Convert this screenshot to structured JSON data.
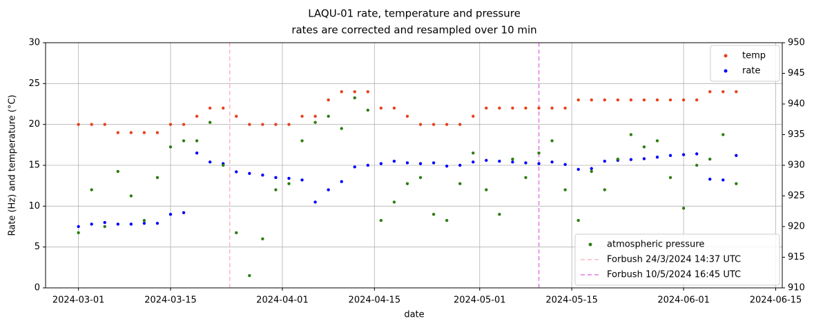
{
  "chart_data": {
    "type": "scatter",
    "title": "LAQU-01 rate, temperature and pressure",
    "subtitle": "rates are corrected and resampled over 10 min",
    "xlabel": "date",
    "ylabel": "Rate (Hz) and temperature (°C)",
    "xlim": [
      "2024-02-25",
      "2024-06-16"
    ],
    "xticks": [
      "2024-03-01",
      "2024-03-15",
      "2024-04-01",
      "2024-04-15",
      "2024-05-01",
      "2024-05-15",
      "2024-06-01",
      "2024-06-15"
    ],
    "ylim": [
      0,
      30
    ],
    "yticks": [
      0,
      5,
      10,
      15,
      20,
      25,
      30
    ],
    "y2lim": [
      910,
      950
    ],
    "y2ticks": [
      910,
      915,
      920,
      925,
      930,
      935,
      940,
      945,
      950
    ],
    "grid": true,
    "legend": "upper right",
    "legend2": "lower right",
    "x": [
      "2024-03-01",
      "2024-03-03",
      "2024-03-05",
      "2024-03-07",
      "2024-03-09",
      "2024-03-11",
      "2024-03-13",
      "2024-03-15",
      "2024-03-17",
      "2024-03-19",
      "2024-03-21",
      "2024-03-23",
      "2024-03-25",
      "2024-03-27",
      "2024-03-29",
      "2024-03-31",
      "2024-04-02",
      "2024-04-04",
      "2024-04-06",
      "2024-04-08",
      "2024-04-10",
      "2024-04-12",
      "2024-04-14",
      "2024-04-16",
      "2024-04-18",
      "2024-04-20",
      "2024-04-22",
      "2024-04-24",
      "2024-04-26",
      "2024-04-28",
      "2024-04-30",
      "2024-05-02",
      "2024-05-04",
      "2024-05-06",
      "2024-05-08",
      "2024-05-10",
      "2024-05-12",
      "2024-05-14",
      "2024-05-16",
      "2024-05-18",
      "2024-05-20",
      "2024-05-22",
      "2024-05-24",
      "2024-05-26",
      "2024-05-28",
      "2024-05-30",
      "2024-06-01",
      "2024-06-03",
      "2024-06-05",
      "2024-06-07",
      "2024-06-09"
    ],
    "series": [
      {
        "name": "temp",
        "color": "#e8401c",
        "values": [
          20,
          20,
          20,
          19,
          19,
          19,
          19,
          20,
          20,
          21,
          22,
          22,
          21,
          20,
          20,
          20,
          20,
          21,
          21,
          23,
          24,
          24,
          24,
          22,
          22,
          21,
          20,
          20,
          20,
          20,
          21,
          22,
          22,
          22,
          22,
          22,
          22,
          22,
          23,
          23,
          23,
          23,
          23,
          23,
          23,
          23,
          23,
          23,
          24,
          24,
          24
        ]
      },
      {
        "name": "rate",
        "color": "#0000ff",
        "values": [
          7.5,
          7.8,
          8,
          7.8,
          7.8,
          7.9,
          7.9,
          9,
          9.2,
          16.5,
          15.4,
          15.2,
          14.2,
          14,
          13.8,
          13.5,
          13.4,
          13.2,
          10.5,
          12,
          13,
          14.8,
          15,
          15.2,
          15.5,
          15.3,
          15.2,
          15.3,
          14.9,
          15,
          15.4,
          15.6,
          15.5,
          15.4,
          15.3,
          15.2,
          15.4,
          15.1,
          14.5,
          14.6,
          15.5,
          15.6,
          15.7,
          15.8,
          16,
          16.2,
          16.3,
          16.4,
          13.3,
          13.2,
          16.2
        ]
      },
      {
        "name": "atmospheric pressure",
        "color": "#2e7d12",
        "axis": "y2",
        "values": [
          919,
          926,
          920,
          929,
          925,
          921,
          928,
          933,
          934,
          934,
          937,
          930,
          919,
          912,
          918,
          926,
          927,
          934,
          937,
          938,
          936,
          941,
          939,
          921,
          924,
          927,
          928,
          922,
          921,
          927,
          932,
          926,
          922,
          931,
          928,
          932,
          934,
          926,
          921,
          929,
          926,
          931,
          935,
          933,
          934,
          928,
          923,
          930,
          931,
          935,
          927
        ]
      }
    ],
    "vlines": [
      {
        "x": "2024-03-24",
        "label": "Forbush 24/3/2024 14:37 UTC",
        "color": "#ffb6c1"
      },
      {
        "x": "2024-05-10",
        "label": "Forbush 10/5/2024 16:45 UTC",
        "color": "#e377e3"
      }
    ]
  }
}
